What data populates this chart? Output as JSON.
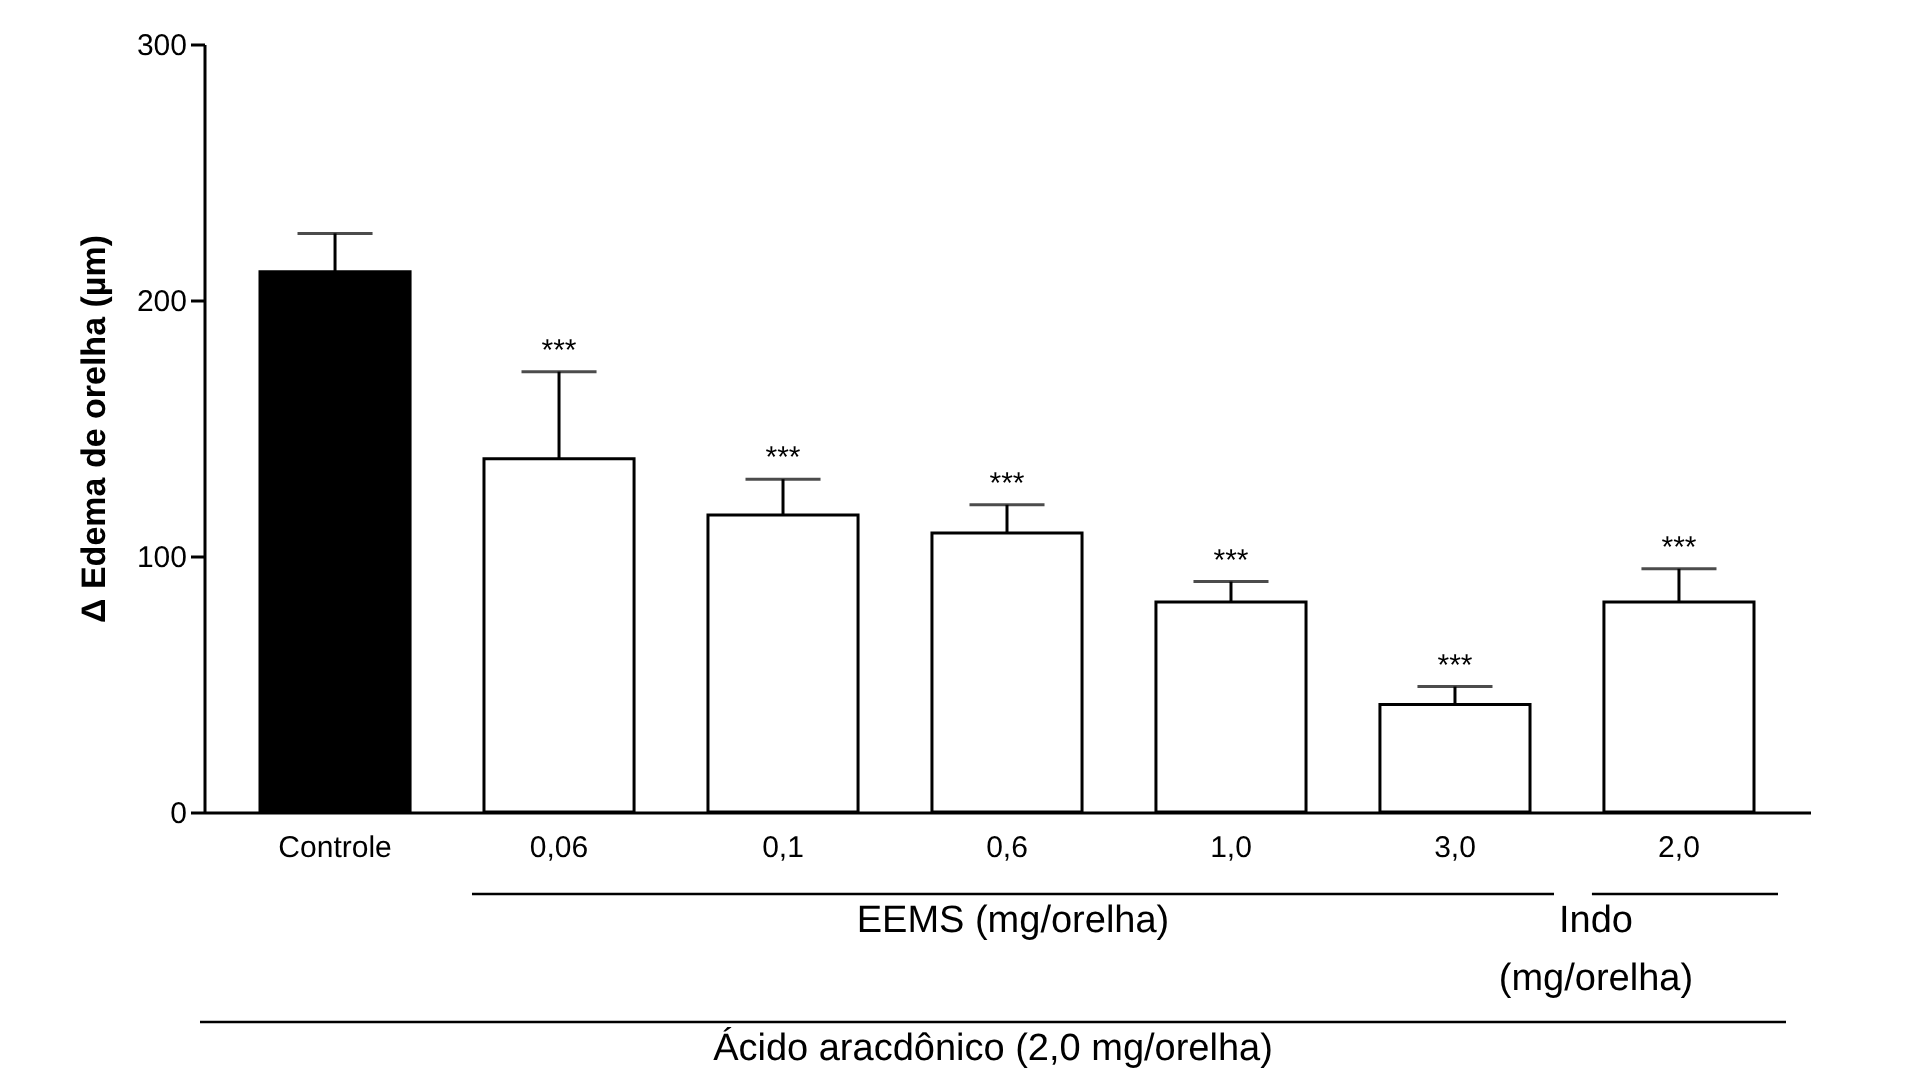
{
  "chart_data": {
    "type": "bar",
    "ylabel": "Δ Edema de orelha (µm)",
    "categories": [
      "Controle",
      "0,06",
      "0,1",
      "0,6",
      "1,0",
      "3,0",
      "2,0"
    ],
    "values": [
      211,
      138,
      116,
      109,
      82,
      42,
      82
    ],
    "errors": [
      15,
      34,
      14,
      11,
      8,
      7,
      13
    ],
    "colors": [
      "#000000",
      "#ffffff",
      "#ffffff",
      "#ffffff",
      "#ffffff",
      "#ffffff",
      "#ffffff"
    ],
    "ylim": [
      0,
      300
    ],
    "yticks": [
      0,
      100,
      200,
      300
    ],
    "grid": false,
    "annotations": [
      {
        "text": "***",
        "x": "0,06",
        "y": 172
      },
      {
        "text": "***",
        "x": "0,1",
        "y": 130
      },
      {
        "text": "***",
        "x": "0,6",
        "y": 120
      },
      {
        "text": "***",
        "x": "1,0",
        "y": 90
      },
      {
        "text": "***",
        "x": "3,0",
        "y": 49
      },
      {
        "text": "***",
        "x": "2,0",
        "y": 95
      },
      "EEMS (mg/orelha)",
      "Indo (mg/orelha)",
      "Ácido aracdônico (2,0 mg/orelha)"
    ]
  }
}
